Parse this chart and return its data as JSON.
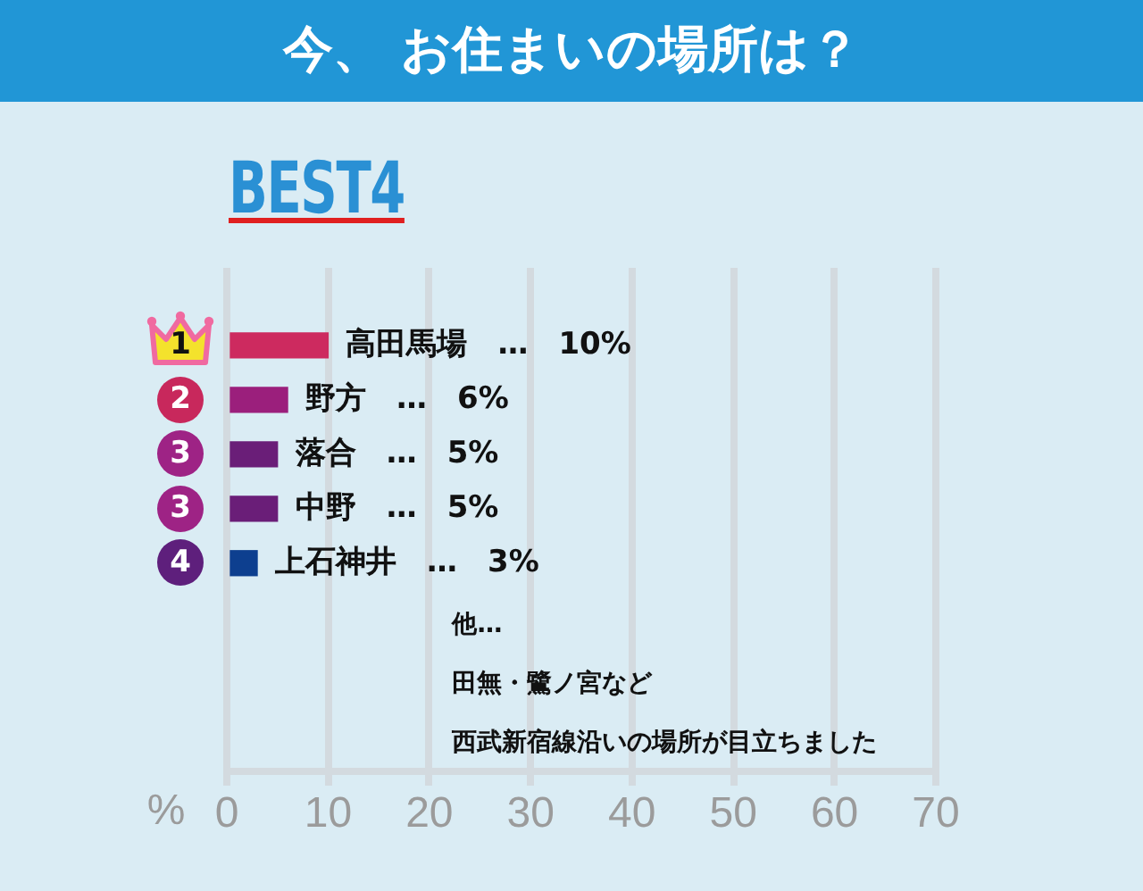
{
  "chart_data": {
    "type": "bar",
    "orientation": "horizontal",
    "title": "今、 お住まいの場所は？",
    "subtitle": "BEST4",
    "xlabel": "%",
    "categories": [
      "1",
      "2",
      "3",
      "3",
      "4"
    ],
    "values": [
      10,
      6,
      5,
      5,
      3
    ],
    "colors": [
      "#cd2a5f",
      "#9b1f7c",
      "#6a1e78",
      "#6a1e78",
      "#0d3f8f"
    ],
    "value_labels": [
      "高田馬場　…　10%",
      "野方　…　6%",
      "落合　…　5%",
      "中野　…　5%",
      "上石神井　…　3%"
    ],
    "xlim": [
      0,
      70
    ],
    "xticks": [
      0,
      10,
      20,
      30,
      40,
      50,
      60,
      70
    ],
    "grid": "x",
    "annotations": [
      "他…",
      "田無・鷺ノ宮など",
      "西武新宿線沿いの場所が目立ちました"
    ]
  }
}
